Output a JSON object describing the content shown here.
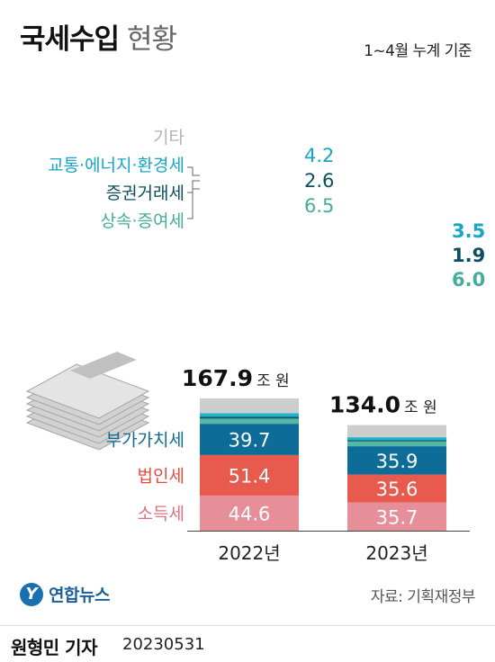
{
  "header": {
    "title_bold": "국세수입",
    "title_light": "현황",
    "basis": "1~4월 누계 기준"
  },
  "chart_data": {
    "type": "bar",
    "stacked": true,
    "categories": [
      "2022년",
      "2023년"
    ],
    "totals": [
      {
        "value": "167.9",
        "unit": "조 원"
      },
      {
        "value": "134.0",
        "unit": "조 원"
      }
    ],
    "series": [
      {
        "name": "소득세",
        "values": [
          44.6,
          35.7
        ],
        "color": "#e68f98",
        "label_color": "#e0707c",
        "show_value": true
      },
      {
        "name": "법인세",
        "values": [
          51.4,
          35.6
        ],
        "color": "#e75a4d",
        "label_color": "#e04e40",
        "show_value": true
      },
      {
        "name": "부가가치세",
        "values": [
          39.7,
          35.9
        ],
        "color": "#0e6d98",
        "label_color": "#0f6a94",
        "show_value": true
      },
      {
        "name": "상속·증여세",
        "values": [
          6.5,
          6.0
        ],
        "color": "#52b9a6",
        "label_color": "#45ad9b",
        "show_value": false
      },
      {
        "name": "증권거래세",
        "values": [
          2.6,
          1.9
        ],
        "color": "#0f5a66",
        "label_color": "#0d4f5c",
        "show_value": false
      },
      {
        "name": "교통·에너지·환경세",
        "values": [
          4.2,
          3.5
        ],
        "color": "#1fb2ce",
        "label_color": "#17a7c4",
        "show_value": false
      },
      {
        "name": "기타",
        "values": [
          null,
          null
        ],
        "color": "#cccdcd",
        "label_color": "#b3b3b3",
        "show_value": false
      }
    ]
  },
  "footer": {
    "source": "자료: 기획재정부",
    "logo_text": "연합뉴스",
    "reporter": "원형민 기자",
    "date": "20230531"
  }
}
